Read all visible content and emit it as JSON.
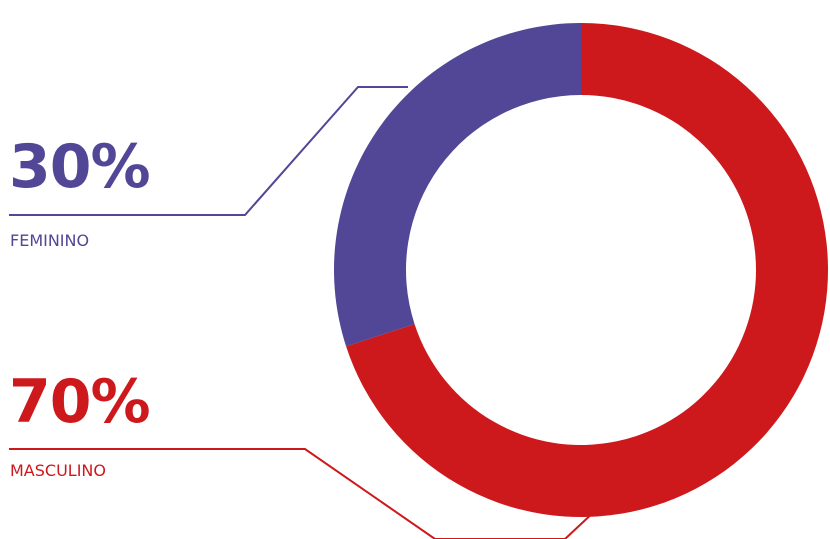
{
  "chart_data": {
    "type": "pie",
    "variant": "donut",
    "categories": [
      "FEMININO",
      "MASCULINO"
    ],
    "values": [
      30,
      70
    ],
    "value_labels": [
      "30%",
      "70%"
    ],
    "colors": [
      "#514796",
      "#cd181c"
    ],
    "title": "",
    "legend": "left, callout lines"
  }
}
